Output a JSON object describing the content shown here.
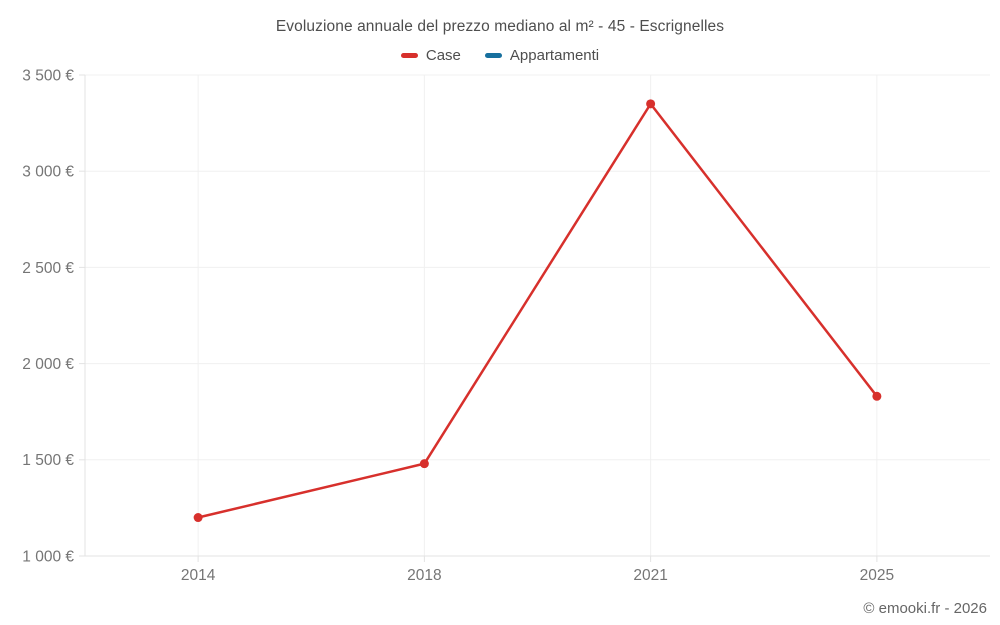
{
  "footer": {
    "copyright": "© emooki.fr - 2026"
  },
  "chart_data": {
    "type": "line",
    "title": "Evoluzione annuale del prezzo mediano al m² - 45 - Escrignelles",
    "categories": [
      "2014",
      "2018",
      "2021",
      "2025"
    ],
    "series": [
      {
        "name": "Case",
        "color": "#d7302c",
        "values": [
          1200,
          1480,
          3350,
          1830
        ]
      },
      {
        "name": "Appartamenti",
        "color": "#17709e",
        "values": []
      }
    ],
    "y_ticks": [
      {
        "value": 1000,
        "label": "1 000 €"
      },
      {
        "value": 1500,
        "label": "1 500 €"
      },
      {
        "value": 2000,
        "label": "2 000 €"
      },
      {
        "value": 2500,
        "label": "2 500 €"
      },
      {
        "value": 3000,
        "label": "3 000 €"
      },
      {
        "value": 3500,
        "label": "3 500 €"
      }
    ],
    "ylim": [
      1000,
      3500
    ],
    "grid": true,
    "legend_position": "top",
    "currency_suffix": "€",
    "colors": {
      "gridline": "#f0f0f0",
      "axis": "#e3e3e3",
      "tick_label": "#757575",
      "title_text": "#4e4e4e",
      "footer_text": "#666666"
    }
  }
}
